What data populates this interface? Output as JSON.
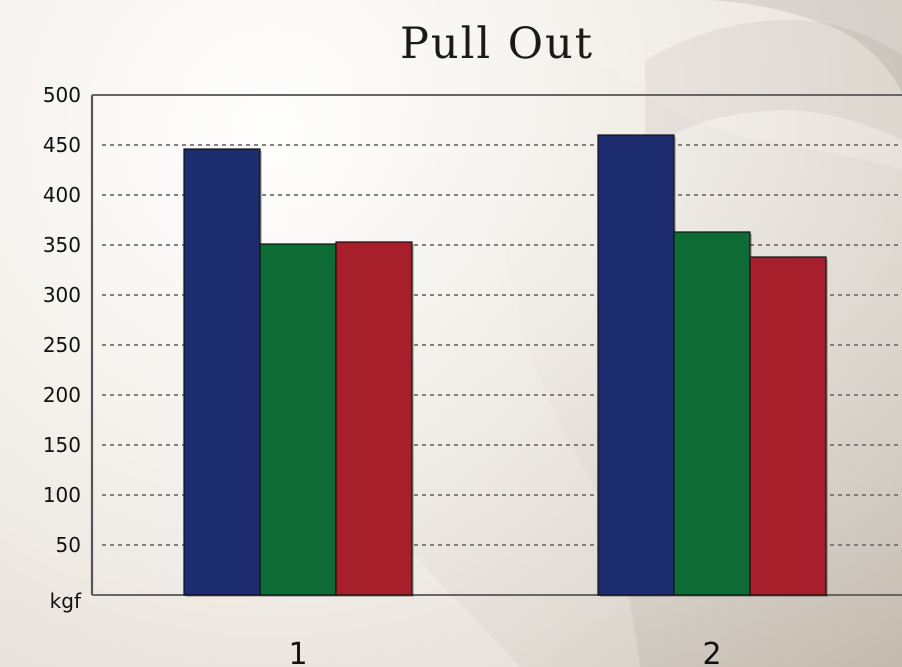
{
  "chart_data": {
    "type": "bar",
    "title": "Pull Out",
    "categories": [
      "1",
      "2"
    ],
    "series": [
      {
        "values": [
          446,
          460
        ]
      },
      {
        "values": [
          351,
          363
        ]
      },
      {
        "values": [
          353,
          338
        ]
      }
    ],
    "y_tick_labels": [
      "kgf",
      "50",
      "100",
      "150",
      "200",
      "250",
      "300",
      "350",
      "400",
      "450",
      "500"
    ],
    "ylim": [
      0,
      500
    ],
    "grid": true,
    "legend": "none",
    "colors": [
      "#1d2c6e",
      "#0e6b35",
      "#a71f2b"
    ]
  }
}
